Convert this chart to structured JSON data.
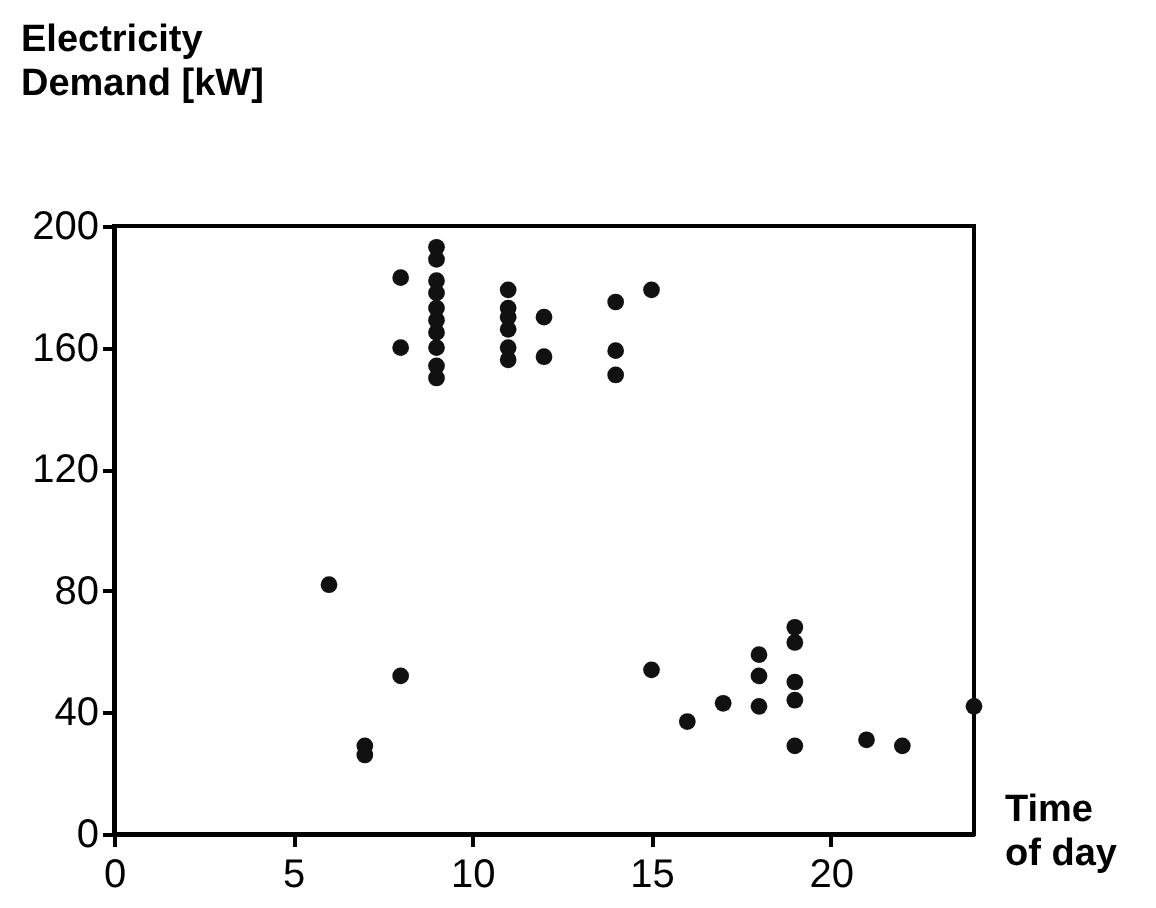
{
  "chart_data": {
    "type": "scatter",
    "xlabel": "Time\nof day",
    "ylabel": "Electricity\nDemand [kW]",
    "xlim": [
      0,
      24
    ],
    "ylim": [
      0,
      200
    ],
    "xticks": [
      0,
      5,
      10,
      15,
      20
    ],
    "yticks": [
      0,
      40,
      80,
      120,
      160,
      200
    ],
    "grid": false,
    "marker": "circle",
    "series": [
      {
        "color": "#111111",
        "x": [
          6,
          7,
          7,
          8,
          8,
          8,
          9,
          9,
          9,
          9,
          9,
          9,
          9,
          9,
          9,
          9,
          11,
          11,
          11,
          11,
          11,
          11,
          12,
          12,
          14,
          14,
          14,
          15,
          15,
          16,
          17,
          18,
          18,
          18,
          19,
          19,
          19,
          19,
          19,
          21,
          22,
          24
        ],
        "values": [
          82,
          29,
          26,
          52,
          183,
          160,
          193,
          189,
          182,
          178,
          173,
          169,
          165,
          160,
          154,
          150,
          179,
          173,
          170,
          166,
          160,
          156,
          170,
          157,
          175,
          159,
          151,
          179,
          54,
          37,
          43,
          59,
          52,
          42,
          68,
          63,
          50,
          44,
          29,
          31,
          29,
          42
        ]
      }
    ]
  }
}
